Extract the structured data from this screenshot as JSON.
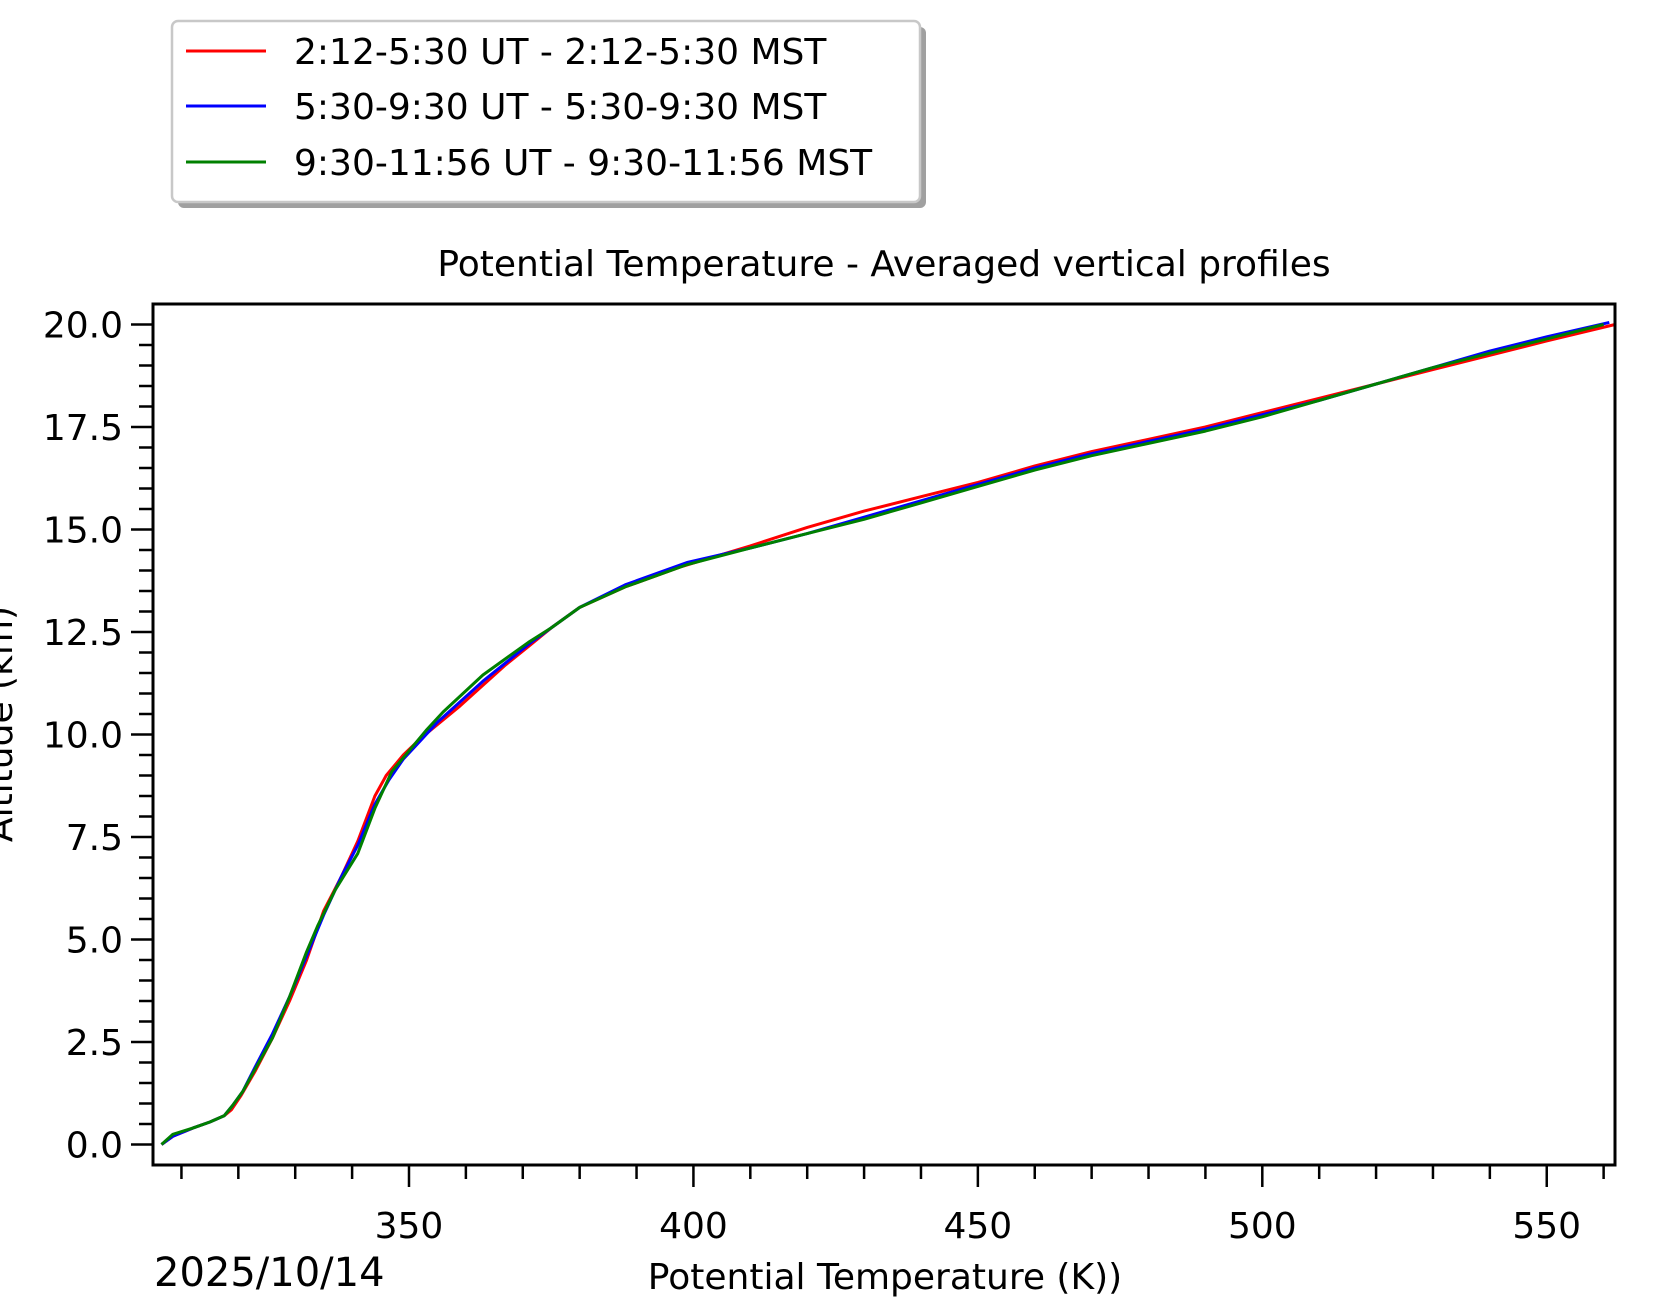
{
  "chart_data": {
    "type": "line",
    "title": "Potential Temperature - Averaged vertical profiles",
    "xlabel": "Potential Temperature (K))",
    "ylabel": "Altitude (km)",
    "date_label": "2025/10/14",
    "xlim": [
      305,
      562
    ],
    "ylim": [
      -0.5,
      20.5
    ],
    "x_ticks": [
      350,
      400,
      450,
      500,
      550
    ],
    "x_tick_labels": [
      "350",
      "400",
      "450",
      "500",
      "550"
    ],
    "y_ticks": [
      0,
      2.5,
      5,
      7.5,
      10,
      12.5,
      15,
      17.5,
      20
    ],
    "y_tick_labels": [
      "0.0",
      "2.5",
      "5.0",
      "7.5",
      "10.0",
      "12.5",
      "15.0",
      "17.5",
      "20.0"
    ],
    "legend_position": "top-left outside",
    "series": [
      {
        "name": "2:12-5:30 UT - 2:12-5:30 MST",
        "color": "#ff0000",
        "x": [
          306.5,
          308.5,
          312,
          315,
          317.5,
          318.8,
          320.5,
          323,
          326,
          329,
          332,
          335,
          338,
          341,
          344,
          346,
          349,
          352,
          355.5,
          359,
          363,
          367,
          371,
          375,
          380,
          388,
          398,
          410,
          420,
          430,
          440,
          450,
          460,
          470,
          480,
          490,
          500,
          510,
          520,
          530,
          540,
          550,
          562
        ],
        "y": [
          0,
          0.2,
          0.4,
          0.55,
          0.7,
          0.85,
          1.2,
          1.8,
          2.6,
          3.5,
          4.5,
          5.7,
          6.5,
          7.4,
          8.5,
          9.0,
          9.5,
          9.9,
          10.3,
          10.7,
          11.2,
          11.7,
          12.15,
          12.6,
          13.1,
          13.6,
          14.1,
          14.6,
          15.05,
          15.45,
          15.8,
          16.15,
          16.55,
          16.9,
          17.2,
          17.5,
          17.85,
          18.2,
          18.55,
          18.9,
          19.25,
          19.6,
          20.0
        ]
      },
      {
        "name": "5:30-9:30 UT - 5:30-9:30 MST",
        "color": "#0000ff",
        "x": [
          306.5,
          308.5,
          312,
          315,
          317.5,
          319,
          320.8,
          323,
          326,
          329,
          332,
          335,
          338,
          341,
          344,
          346.5,
          349,
          352,
          355,
          359,
          363,
          367,
          371,
          375,
          380,
          388,
          399,
          410,
          420,
          430,
          440,
          450,
          460,
          470,
          480,
          490,
          500,
          510,
          520,
          530,
          540,
          550,
          561
        ],
        "y": [
          0,
          0.2,
          0.4,
          0.55,
          0.7,
          0.95,
          1.3,
          1.9,
          2.7,
          3.6,
          4.6,
          5.6,
          6.5,
          7.3,
          8.3,
          8.9,
          9.4,
          9.85,
          10.3,
          10.8,
          11.3,
          11.75,
          12.2,
          12.6,
          13.1,
          13.65,
          14.2,
          14.55,
          14.9,
          15.3,
          15.7,
          16.1,
          16.5,
          16.85,
          17.15,
          17.45,
          17.8,
          18.15,
          18.55,
          18.95,
          19.35,
          19.7,
          20.05
        ]
      },
      {
        "name": "9:30-11:56 UT - 9:30-11:56 MST",
        "color": "#008000",
        "x": [
          306.5,
          308.5,
          312,
          315,
          317.5,
          319,
          320.8,
          323,
          326,
          329,
          332,
          334,
          337,
          341,
          344,
          347,
          350,
          353,
          356,
          359.5,
          363,
          367,
          371,
          375,
          380,
          388,
          399,
          410,
          420,
          430,
          440,
          450,
          460,
          470,
          480,
          490,
          500,
          510,
          520,
          530,
          540,
          550,
          560
        ],
        "y": [
          0,
          0.25,
          0.4,
          0.55,
          0.7,
          0.95,
          1.3,
          1.85,
          2.6,
          3.6,
          4.7,
          5.35,
          6.2,
          7.1,
          8.2,
          9.1,
          9.6,
          10.1,
          10.55,
          11.0,
          11.45,
          11.85,
          12.25,
          12.6,
          13.1,
          13.6,
          14.15,
          14.55,
          14.9,
          15.25,
          15.65,
          16.05,
          16.45,
          16.8,
          17.1,
          17.4,
          17.75,
          18.15,
          18.55,
          18.95,
          19.3,
          19.65,
          20.0
        ]
      }
    ]
  }
}
